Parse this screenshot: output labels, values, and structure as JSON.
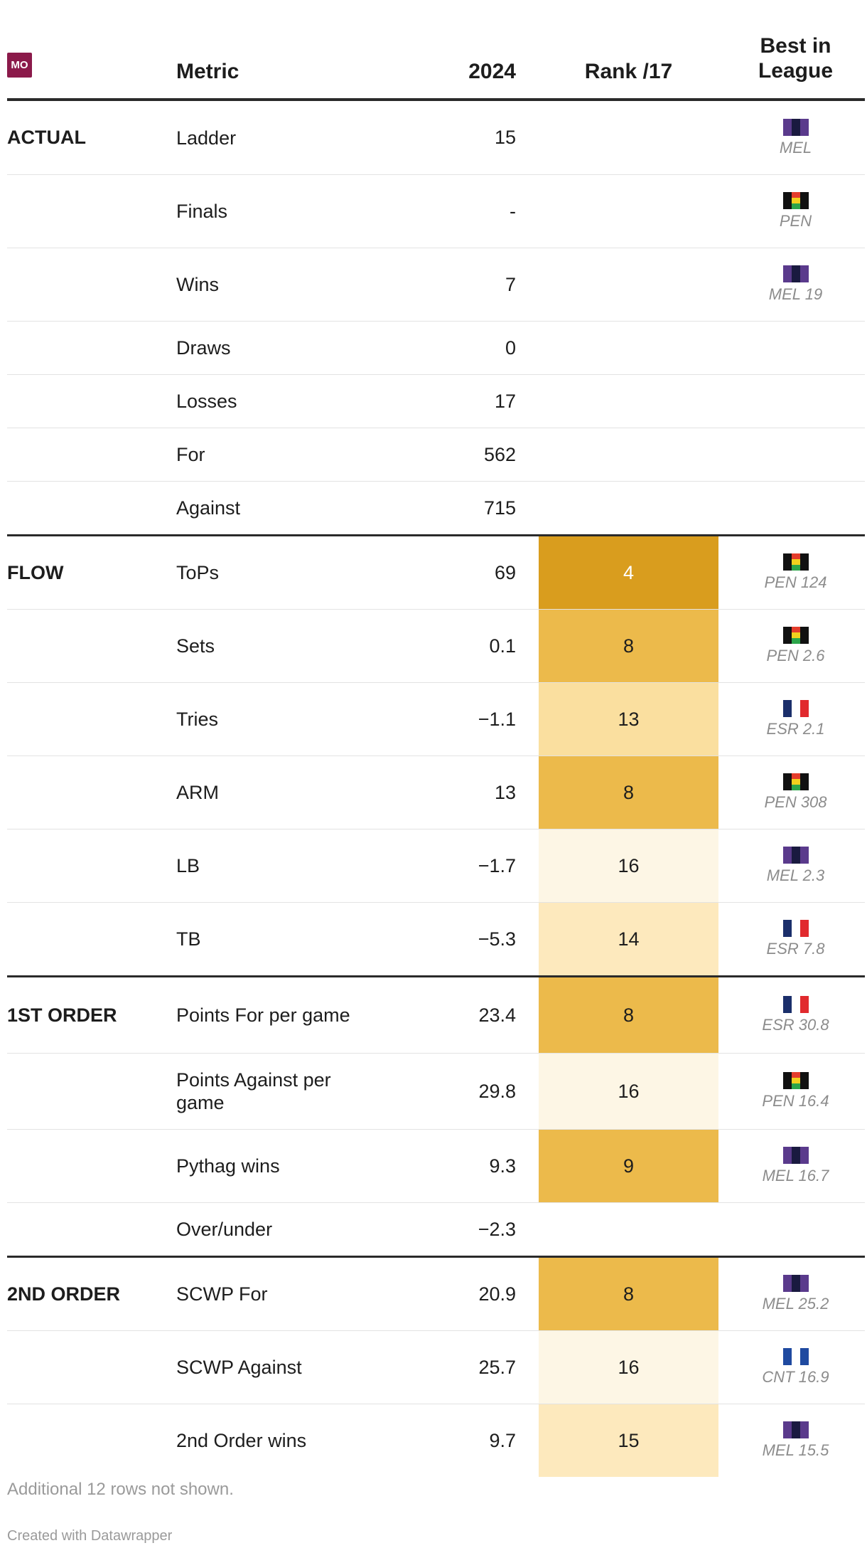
{
  "header": {
    "logo_text": "MO",
    "metric": "Metric",
    "year": "2024",
    "rank": "Rank /17",
    "best_line1": "Best in",
    "best_line2": "League"
  },
  "colors": {
    "rank_shades": [
      "#fdf6e5",
      "#fde9bd",
      "#fadf9f",
      "#ecba4b",
      "#d99d1e"
    ],
    "MEL": [
      "#5a3a8c",
      "#1a1a40",
      "#5a3a8c"
    ],
    "PEN": [
      "#111111",
      "#e43c2c",
      "#111111"
    ],
    "ESR": [
      "#1b2f6b",
      "#ffffff",
      "#e12a2e"
    ],
    "CNT": [
      "#1f4aa0",
      "#ffffff",
      "#1f4aa0"
    ]
  },
  "rows": [
    {
      "section": "ACTUAL",
      "metric": "Ladder",
      "value": "15",
      "rank": "",
      "best_team": "MEL",
      "best": "MEL",
      "height": 103
    },
    {
      "section": "",
      "metric": "Finals",
      "value": "-",
      "rank": "",
      "best_team": "PEN",
      "best": "PEN",
      "height": 102
    },
    {
      "section": "",
      "metric": "Wins",
      "value": "7",
      "rank": "",
      "best_team": "MEL",
      "best": "MEL 19",
      "height": 102
    },
    {
      "section": "",
      "metric": "Draws",
      "value": "0",
      "rank": "",
      "best_team": "",
      "best": "",
      "height": 74
    },
    {
      "section": "",
      "metric": "Losses",
      "value": "17",
      "rank": "",
      "best_team": "",
      "best": "",
      "height": 74
    },
    {
      "section": "",
      "metric": "For",
      "value": "562",
      "rank": "",
      "best_team": "",
      "best": "",
      "height": 74
    },
    {
      "section": "",
      "metric": "Against",
      "value": "715",
      "rank": "",
      "best_team": "",
      "best": "",
      "height": 74,
      "sep": true
    },
    {
      "section": "FLOW",
      "metric": "ToPs",
      "value": "69",
      "rank": "4",
      "best_team": "PEN",
      "best": "PEN 124",
      "height": 102
    },
    {
      "section": "",
      "metric": "Sets",
      "value": "0.1",
      "rank": "8",
      "best_team": "PEN",
      "best": "PEN 2.6",
      "height": 102
    },
    {
      "section": "",
      "metric": "Tries",
      "value": "−1.1",
      "rank": "13",
      "best_team": "ESR",
      "best": "ESR 2.1",
      "height": 102
    },
    {
      "section": "",
      "metric": "ARM",
      "value": "13",
      "rank": "8",
      "best_team": "PEN",
      "best": "PEN 308",
      "height": 102
    },
    {
      "section": "",
      "metric": "LB",
      "value": "−1.7",
      "rank": "16",
      "best_team": "MEL",
      "best": "MEL 2.3",
      "height": 102
    },
    {
      "section": "",
      "metric": "TB",
      "value": "−5.3",
      "rank": "14",
      "best_team": "ESR",
      "best": "ESR 7.8",
      "height": 102,
      "sep": true
    },
    {
      "section": "1ST ORDER",
      "metric": "Points For per game",
      "value": "23.4",
      "rank": "8",
      "best_team": "ESR",
      "best": "ESR 30.8",
      "height": 106
    },
    {
      "section": "",
      "metric": "Points Against per game",
      "value": "29.8",
      "rank": "16",
      "best_team": "PEN",
      "best": "PEN 16.4",
      "height": 106
    },
    {
      "section": "",
      "metric": "Pythag wins",
      "value": "9.3",
      "rank": "9",
      "best_team": "MEL",
      "best": "MEL 16.7",
      "height": 102
    },
    {
      "section": "",
      "metric": "Over/under",
      "value": "−2.3",
      "rank": "",
      "best_team": "",
      "best": "",
      "height": 74,
      "sep": true
    },
    {
      "section": "2ND ORDER",
      "metric": "SCWP For",
      "value": "20.9",
      "rank": "8",
      "best_team": "MEL",
      "best": "MEL 25.2",
      "height": 102
    },
    {
      "section": "",
      "metric": "SCWP Against",
      "value": "25.7",
      "rank": "16",
      "best_team": "CNT",
      "best": "CNT 16.9",
      "height": 102
    },
    {
      "section": "",
      "metric": "2nd Order wins",
      "value": "9.7",
      "rank": "15",
      "best_team": "MEL",
      "best": "MEL 15.5",
      "height": 102,
      "noborder": true
    }
  ],
  "footer": {
    "note": "Additional 12 rows not shown.",
    "credit": "Created with Datawrapper"
  }
}
